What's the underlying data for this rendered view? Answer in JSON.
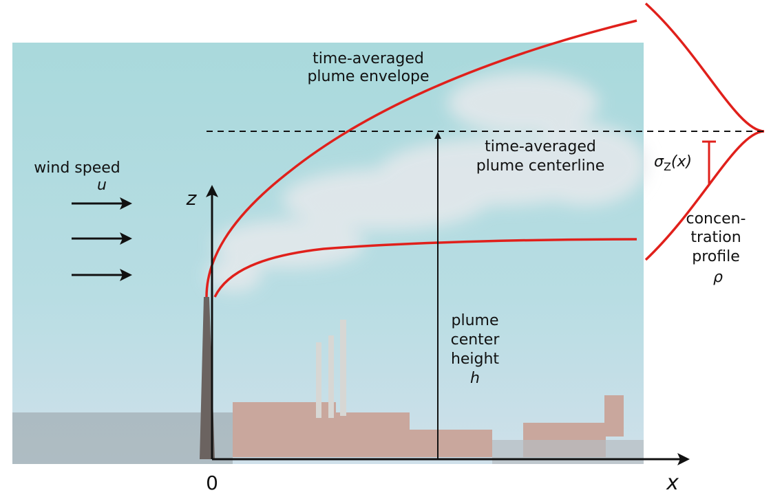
{
  "labels": {
    "envelope": [
      "time-averaged",
      "plume envelope"
    ],
    "centerline": [
      "time-averaged",
      "plume centerline"
    ],
    "wind": {
      "text": "wind speed",
      "symbol": "u"
    },
    "height": {
      "lines": [
        "plume",
        "center",
        "height"
      ],
      "symbol": "h"
    },
    "profile": {
      "lines": [
        "concen-",
        "tration",
        "profile"
      ],
      "symbol": "ρ"
    },
    "sigma": {
      "symbol": "σ",
      "subscript": "Z",
      "argument": "(x)"
    },
    "axes": {
      "z": "z",
      "x": "x",
      "origin": "0"
    }
  }
}
